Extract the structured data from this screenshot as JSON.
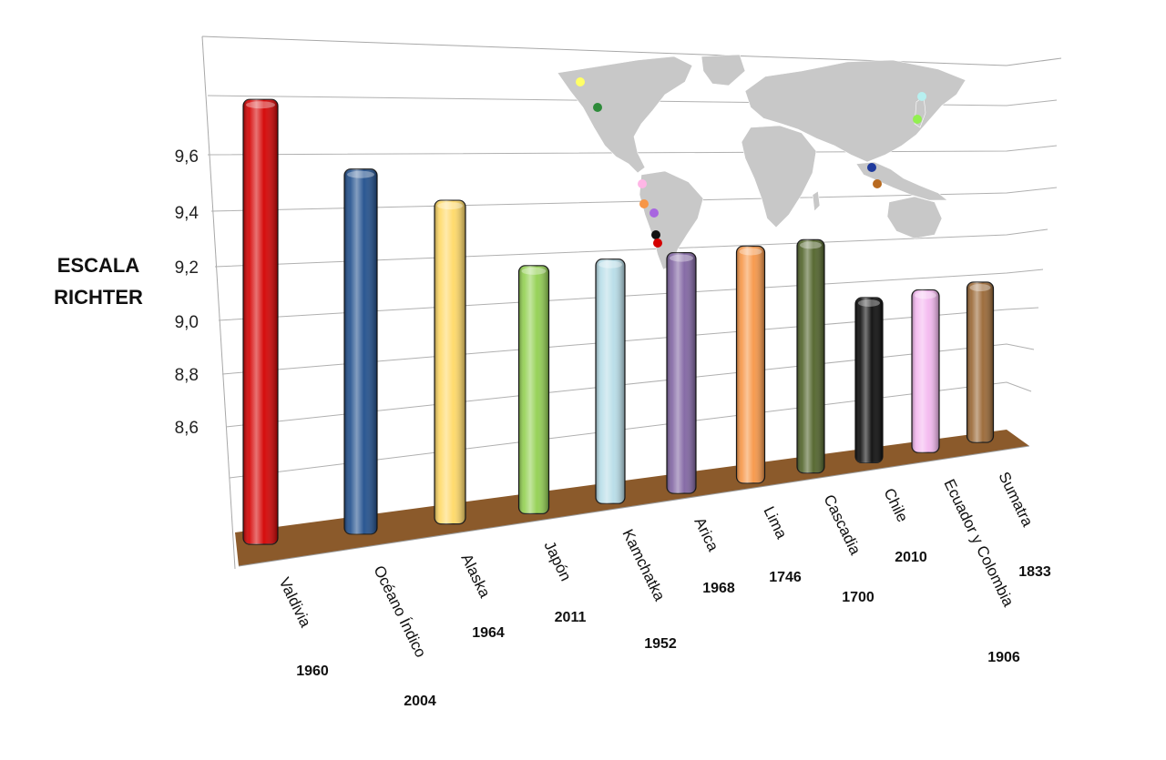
{
  "chart_data": {
    "type": "bar",
    "ylabel_lines": [
      "ESCALA",
      "RICHTER"
    ],
    "ylim": [
      8.4,
      9.6
    ],
    "y_ticks": [
      "8,6",
      "8,8",
      "9,0",
      "9,2",
      "9,4",
      "9,6"
    ],
    "y_tick_values": [
      8.6,
      8.8,
      9.0,
      9.2,
      9.4,
      9.6
    ],
    "grid": true,
    "categories": [
      "Valdivia",
      "Océano Índico",
      "Alaska",
      "Japón",
      "Kamchatka",
      "Arica",
      "Lima",
      "Cascadia",
      "Chile",
      "Ecuador y Colombia",
      "Sumatra"
    ],
    "years": [
      "1960",
      "2004",
      "1964",
      "2011",
      "1952",
      "1968",
      "1746",
      "1700",
      "2010",
      "1906",
      "1833"
    ],
    "values": [
      9.5,
      9.3,
      9.2,
      9.0,
      9.0,
      9.0,
      9.0,
      9.0,
      8.8,
      8.8,
      8.8
    ],
    "colors": [
      "#d40000",
      "#1f4e8c",
      "#ffd966",
      "#92d050",
      "#b7dde8",
      "#8064a2",
      "#f79646",
      "#4f6228",
      "#0a0a0a",
      "#f4b8f0",
      "#996633"
    ],
    "floor_color": "#8b5a2b",
    "map_color": "#c8c8c8",
    "map_markers": [
      {
        "region": "Alaska",
        "color": "#ffff66"
      },
      {
        "region": "Cascadia",
        "color": "#2e8b3a"
      },
      {
        "region": "Ecuador y Colombia",
        "color": "#ffb6e6"
      },
      {
        "region": "Lima",
        "color": "#f79646"
      },
      {
        "region": "Arica",
        "color": "#a866e0"
      },
      {
        "region": "Chile",
        "color": "#111111"
      },
      {
        "region": "Valdivia",
        "color": "#d40000"
      },
      {
        "region": "Kamchatka",
        "color": "#b7f0f0"
      },
      {
        "region": "Japón",
        "color": "#92f050"
      },
      {
        "region": "Océano Índico",
        "color": "#1f3a9c"
      },
      {
        "region": "Sumatra",
        "color": "#b86a20"
      }
    ]
  }
}
